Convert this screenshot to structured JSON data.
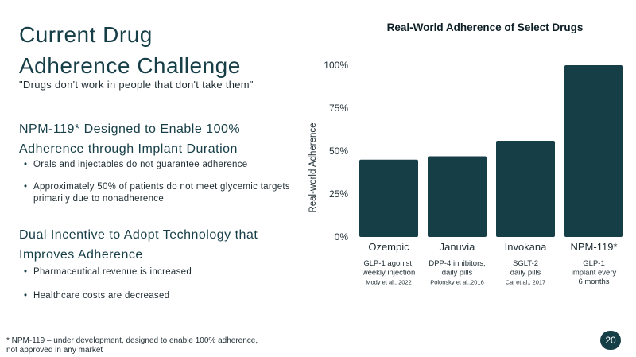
{
  "slide": {
    "title_line1": "Current Drug",
    "title_line2": "Adherence Challenge",
    "subtitle": "\"Drugs don't work in people that don't take them\"",
    "section1": {
      "heading_line1": "NPM-119* Designed to Enable 100%",
      "heading_line2": "Adherence through Implant Duration",
      "bullets": [
        "Orals and injectables do not guarantee adherence",
        "Approximately 50% of patients do not meet glycemic targets primarily due to nonadherence"
      ]
    },
    "section2": {
      "heading_line1": "Dual Incentive to Adopt Technology that",
      "heading_line2": "Improves Adherence",
      "bullets": [
        "Pharmaceutical revenue is increased",
        "Healthcare costs are decreased"
      ]
    },
    "footnote_line1": "* NPM-119 – under development, designed to enable 100% adherence,",
    "footnote_line2": "not approved in any market",
    "page_number": "20"
  },
  "colors": {
    "bar": "#163e47",
    "text": "#163e47",
    "body_text": "#1f2d33"
  },
  "chart_data": {
    "type": "bar",
    "title": "Real-World Adherence of Select Drugs",
    "ylabel": "Real-world Adherence",
    "ylim": [
      0,
      100
    ],
    "yticks": [
      0,
      25,
      50,
      75,
      100
    ],
    "ytick_labels": [
      "0%",
      "25%",
      "50%",
      "75%",
      "100%"
    ],
    "categories": [
      "Ozempic",
      "Januvia",
      "Invokana",
      "NPM-119*"
    ],
    "values": [
      45,
      47,
      56,
      100
    ],
    "descriptions": [
      [
        "GLP-1 agonist,",
        "weekly injection"
      ],
      [
        "DPP-4 inhibitors,",
        "daily pills"
      ],
      [
        "SGLT-2",
        "daily pills"
      ],
      [
        "GLP-1",
        "implant every",
        "6 months"
      ]
    ],
    "sources": [
      "Mody et al., 2022",
      "Polonsky et al.,2016",
      "Cai et al., 2017",
      ""
    ],
    "grid": false,
    "legend": "none"
  }
}
